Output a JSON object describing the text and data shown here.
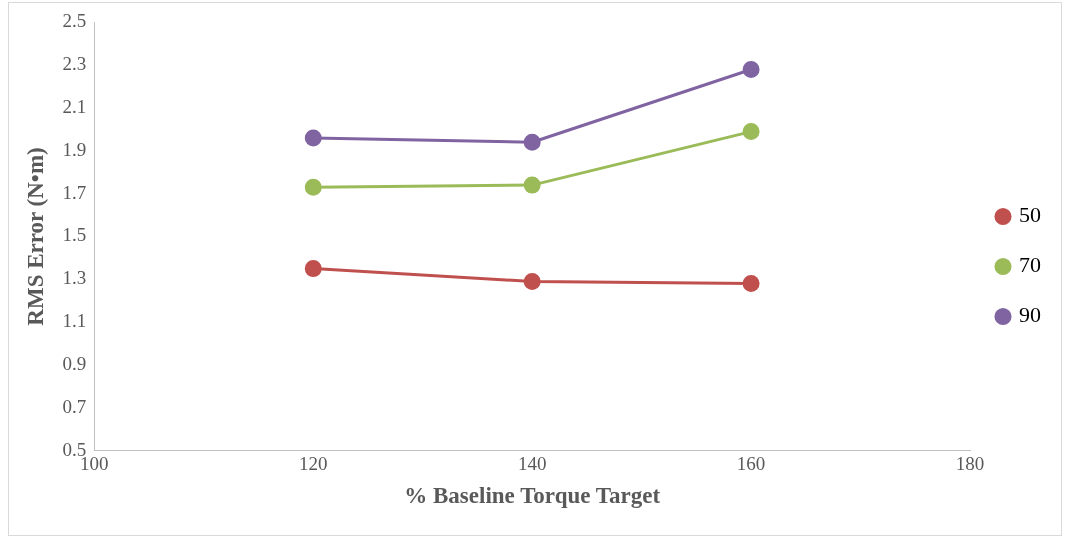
{
  "chart_data": {
    "type": "line",
    "xlabel": "% Baseline Torque Target",
    "ylabel": "RMS Error (N•m)",
    "x": [
      120,
      140,
      160
    ],
    "series": [
      {
        "name": "50",
        "color": "#c0504d",
        "values": [
          1.35,
          1.29,
          1.28
        ]
      },
      {
        "name": "70",
        "color": "#9bbb59",
        "values": [
          1.73,
          1.74,
          1.99
        ]
      },
      {
        "name": "90",
        "color": "#8064a2",
        "values": [
          1.96,
          1.94,
          2.28
        ]
      }
    ],
    "xlim": [
      100,
      180
    ],
    "xticks": [
      100,
      120,
      140,
      160,
      180
    ],
    "ylim": [
      0.5,
      2.5
    ],
    "yticks": [
      0.5,
      0.7,
      0.9,
      1.1,
      1.3,
      1.5,
      1.7,
      1.9,
      2.1,
      2.3,
      2.5
    ],
    "grid": false,
    "legend": "right",
    "marker": "circle",
    "line_style": "solid"
  }
}
